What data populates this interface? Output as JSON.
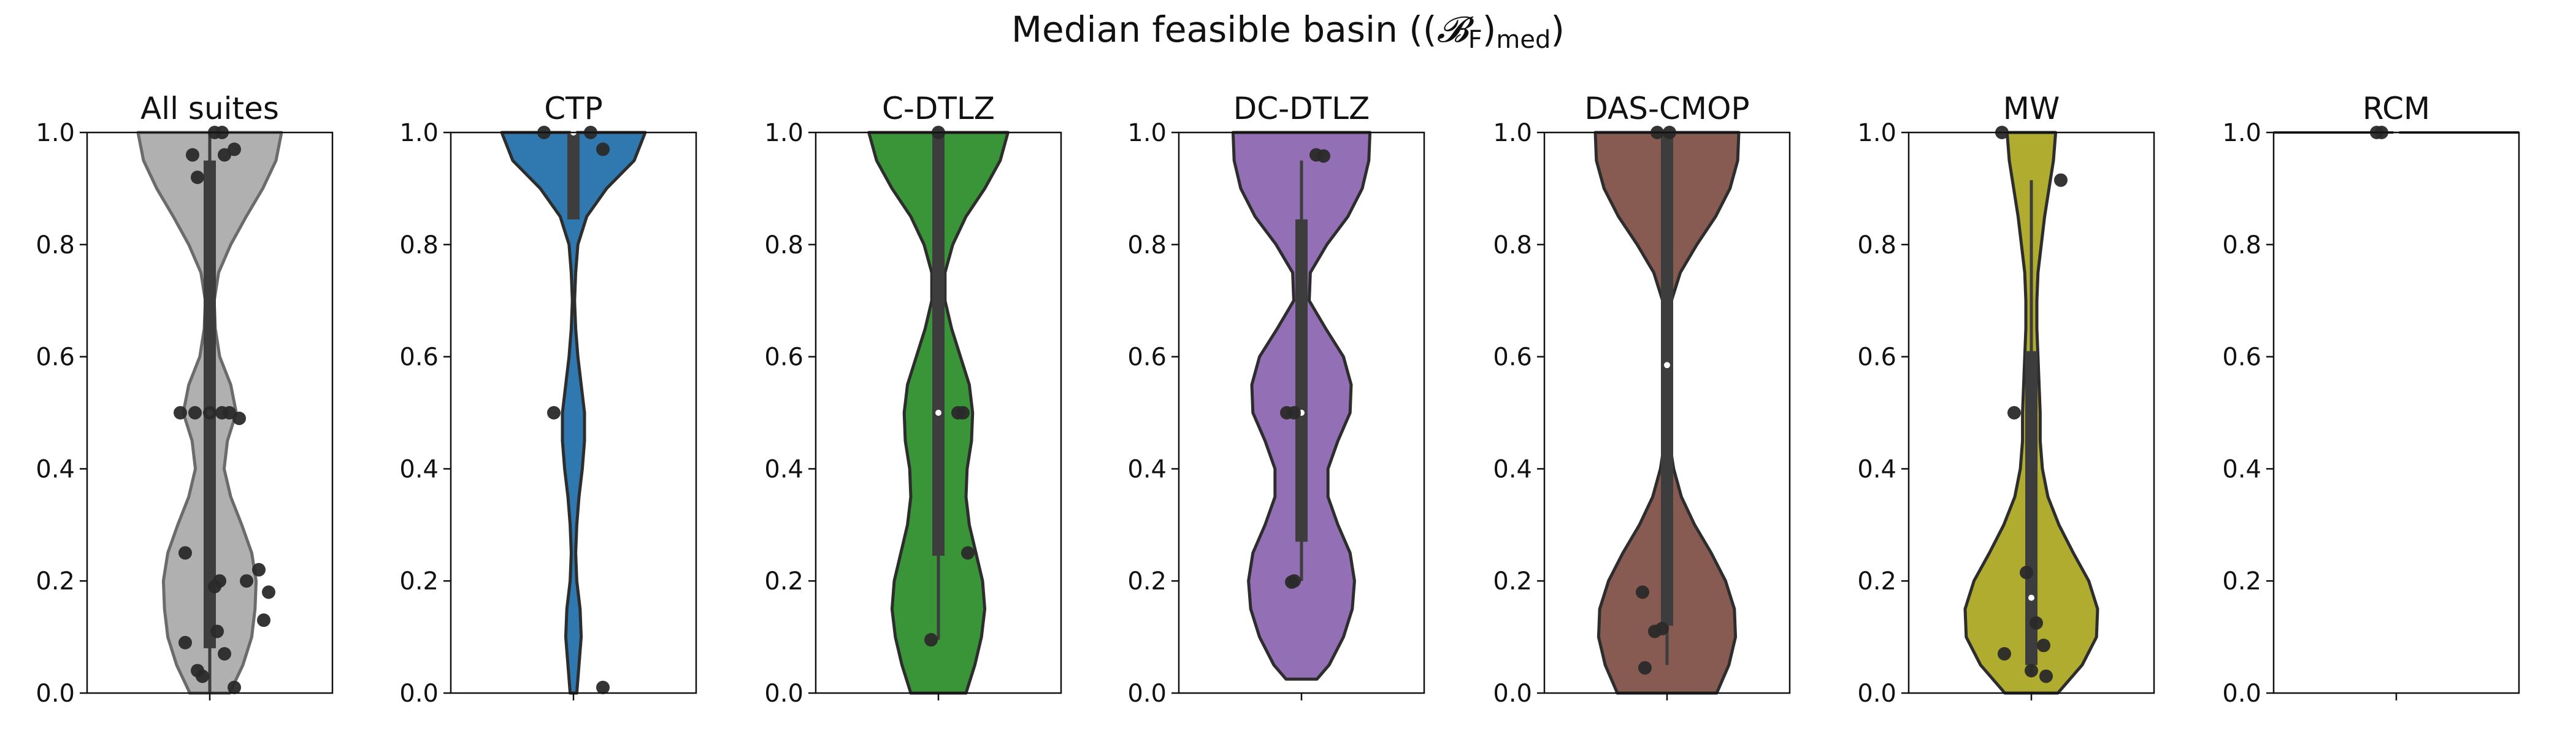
{
  "title": {
    "prefix": "Median feasible basin ((",
    "symbol": "𝓑",
    "sub_f": "F",
    "mid": ")",
    "sub_med": "med",
    "suffix": ")"
  },
  "chart_data": {
    "type": "violin",
    "ylim": [
      0,
      1
    ],
    "yticks": [
      "0.0",
      "0.2",
      "0.4",
      "0.6",
      "0.8",
      "1.0"
    ],
    "grid": false,
    "panels": [
      {
        "title": "All suites",
        "color": "#b0b0b0",
        "outline": "#6b6b6b",
        "violin": [
          [
            0.0,
            0.18
          ],
          [
            0.05,
            0.3
          ],
          [
            0.1,
            0.38
          ],
          [
            0.15,
            0.41
          ],
          [
            0.2,
            0.42
          ],
          [
            0.25,
            0.38
          ],
          [
            0.3,
            0.29
          ],
          [
            0.35,
            0.19
          ],
          [
            0.4,
            0.13
          ],
          [
            0.45,
            0.16
          ],
          [
            0.5,
            0.24
          ],
          [
            0.55,
            0.19
          ],
          [
            0.6,
            0.09
          ],
          [
            0.65,
            0.05
          ],
          [
            0.7,
            0.04
          ],
          [
            0.75,
            0.08
          ],
          [
            0.8,
            0.19
          ],
          [
            0.85,
            0.33
          ],
          [
            0.9,
            0.48
          ],
          [
            0.95,
            0.6
          ],
          [
            1.0,
            0.65
          ]
        ],
        "box": {
          "q1": 0.08,
          "median": 0.5,
          "q3": 0.95,
          "whisker_low": 0.0,
          "whisker_high": 1.0
        },
        "points": [
          [
            0.0,
            0.5
          ],
          [
            -0.07,
            0.96
          ],
          [
            0.06,
            0.96
          ],
          [
            0.1,
            0.97
          ],
          [
            -0.05,
            0.92
          ],
          [
            0.02,
            1.0
          ],
          [
            0.05,
            1.0
          ],
          [
            -0.12,
            0.5
          ],
          [
            -0.06,
            0.5
          ],
          [
            0.05,
            0.5
          ],
          [
            0.08,
            0.5
          ],
          [
            0.12,
            0.49
          ],
          [
            -0.1,
            0.25
          ],
          [
            0.2,
            0.22
          ],
          [
            0.15,
            0.2
          ],
          [
            0.04,
            0.2
          ],
          [
            0.02,
            0.19
          ],
          [
            0.24,
            0.18
          ],
          [
            0.22,
            0.13
          ],
          [
            0.03,
            0.11
          ],
          [
            -0.1,
            0.09
          ],
          [
            0.06,
            0.07
          ],
          [
            -0.05,
            0.04
          ],
          [
            -0.03,
            0.03
          ],
          [
            0.1,
            0.01
          ]
        ]
      },
      {
        "title": "CTP",
        "color": "#2f78b0",
        "outline": "#2d2d2d",
        "violin": [
          [
            0.0,
            0.03
          ],
          [
            0.05,
            0.05
          ],
          [
            0.1,
            0.07
          ],
          [
            0.15,
            0.06
          ],
          [
            0.2,
            0.03
          ],
          [
            0.25,
            0.02
          ],
          [
            0.3,
            0.03
          ],
          [
            0.35,
            0.05
          ],
          [
            0.4,
            0.08
          ],
          [
            0.45,
            0.1
          ],
          [
            0.5,
            0.1
          ],
          [
            0.55,
            0.07
          ],
          [
            0.6,
            0.04
          ],
          [
            0.65,
            0.02
          ],
          [
            0.7,
            0.01
          ],
          [
            0.75,
            0.02
          ],
          [
            0.8,
            0.04
          ],
          [
            0.85,
            0.12
          ],
          [
            0.9,
            0.3
          ],
          [
            0.95,
            0.55
          ],
          [
            1.0,
            0.65
          ]
        ],
        "box": {
          "q1": 0.845,
          "median": 1.0,
          "q3": 1.0,
          "whisker_low": 0.845,
          "whisker_high": 1.0
        },
        "points": [
          [
            -0.12,
            1.0
          ],
          [
            0.07,
            1.0
          ],
          [
            0.12,
            0.97
          ],
          [
            -0.08,
            0.5
          ],
          [
            0.12,
            0.01
          ]
        ]
      },
      {
        "title": "C-DTLZ",
        "color": "#3a9438",
        "outline": "#2d2d2d",
        "violin": [
          [
            0.0,
            0.25
          ],
          [
            0.05,
            0.33
          ],
          [
            0.1,
            0.39
          ],
          [
            0.15,
            0.42
          ],
          [
            0.2,
            0.4
          ],
          [
            0.25,
            0.34
          ],
          [
            0.3,
            0.28
          ],
          [
            0.35,
            0.25
          ],
          [
            0.4,
            0.26
          ],
          [
            0.45,
            0.3
          ],
          [
            0.5,
            0.31
          ],
          [
            0.55,
            0.28
          ],
          [
            0.6,
            0.2
          ],
          [
            0.65,
            0.12
          ],
          [
            0.7,
            0.06
          ],
          [
            0.75,
            0.06
          ],
          [
            0.8,
            0.13
          ],
          [
            0.85,
            0.25
          ],
          [
            0.9,
            0.42
          ],
          [
            0.95,
            0.56
          ],
          [
            1.0,
            0.63
          ]
        ],
        "box": {
          "q1": 0.245,
          "median": 0.5,
          "q3": 1.0,
          "whisker_low": 0.095,
          "whisker_high": 1.0
        },
        "points": [
          [
            0.08,
            0.5
          ],
          [
            0.1,
            0.5
          ],
          [
            -0.03,
            0.095
          ],
          [
            0.12,
            0.25
          ],
          [
            0.0,
            1.0
          ]
        ]
      },
      {
        "title": "DC-DTLZ",
        "color": "#9370b5",
        "outline": "#2d2d2d",
        "violin": [
          [
            0.025,
            0.14
          ],
          [
            0.05,
            0.25
          ],
          [
            0.1,
            0.38
          ],
          [
            0.15,
            0.46
          ],
          [
            0.2,
            0.48
          ],
          [
            0.25,
            0.44
          ],
          [
            0.3,
            0.33
          ],
          [
            0.35,
            0.24
          ],
          [
            0.4,
            0.24
          ],
          [
            0.45,
            0.33
          ],
          [
            0.5,
            0.44
          ],
          [
            0.55,
            0.45
          ],
          [
            0.6,
            0.38
          ],
          [
            0.65,
            0.22
          ],
          [
            0.7,
            0.07
          ],
          [
            0.75,
            0.08
          ],
          [
            0.8,
            0.23
          ],
          [
            0.85,
            0.42
          ],
          [
            0.9,
            0.55
          ],
          [
            0.95,
            0.61
          ],
          [
            1.0,
            0.62
          ]
        ],
        "box": {
          "q1": 0.27,
          "median": 0.5,
          "q3": 0.845,
          "whisker_low": 0.2,
          "whisker_high": 0.95
        },
        "points": [
          [
            -0.06,
            0.5
          ],
          [
            -0.03,
            0.5
          ],
          [
            -0.03,
            0.2
          ],
          [
            -0.04,
            0.198
          ],
          [
            0.06,
            0.96
          ],
          [
            0.09,
            0.958
          ]
        ]
      },
      {
        "title": "DAS-CMOP",
        "color": "#875b52",
        "outline": "#2d2d2d",
        "violin": [
          [
            0.0,
            0.45
          ],
          [
            0.05,
            0.56
          ],
          [
            0.1,
            0.62
          ],
          [
            0.15,
            0.61
          ],
          [
            0.2,
            0.53
          ],
          [
            0.25,
            0.4
          ],
          [
            0.3,
            0.25
          ],
          [
            0.35,
            0.13
          ],
          [
            0.4,
            0.06
          ],
          [
            0.45,
            0.02
          ],
          [
            0.5,
            0.01
          ],
          [
            0.55,
            0.005
          ],
          [
            0.6,
            0.005
          ],
          [
            0.65,
            0.01
          ],
          [
            0.7,
            0.04
          ],
          [
            0.75,
            0.12
          ],
          [
            0.8,
            0.27
          ],
          [
            0.85,
            0.44
          ],
          [
            0.9,
            0.57
          ],
          [
            0.95,
            0.64
          ],
          [
            1.0,
            0.65
          ]
        ],
        "box": {
          "q1": 0.12,
          "median": 0.585,
          "q3": 1.0,
          "whisker_low": 0.05,
          "whisker_high": 1.0
        },
        "points": [
          [
            -0.1,
            0.18
          ],
          [
            -0.05,
            0.11
          ],
          [
            -0.02,
            0.115
          ],
          [
            -0.09,
            0.045
          ],
          [
            0.01,
            1.0
          ],
          [
            -0.04,
            1.0
          ]
        ]
      },
      {
        "title": "MW",
        "color": "#afac30",
        "outline": "#2d2d2d",
        "violin": [
          [
            0.0,
            0.24
          ],
          [
            0.05,
            0.46
          ],
          [
            0.1,
            0.59
          ],
          [
            0.15,
            0.6
          ],
          [
            0.2,
            0.52
          ],
          [
            0.25,
            0.38
          ],
          [
            0.3,
            0.25
          ],
          [
            0.35,
            0.15
          ],
          [
            0.4,
            0.1
          ],
          [
            0.45,
            0.08
          ],
          [
            0.5,
            0.08
          ],
          [
            0.55,
            0.07
          ],
          [
            0.6,
            0.06
          ],
          [
            0.65,
            0.05
          ],
          [
            0.7,
            0.05
          ],
          [
            0.75,
            0.06
          ],
          [
            0.8,
            0.09
          ],
          [
            0.85,
            0.12
          ],
          [
            0.9,
            0.16
          ],
          [
            0.95,
            0.2
          ],
          [
            1.0,
            0.22
          ]
        ],
        "box": {
          "q1": 0.05,
          "median": 0.17,
          "q3": 0.61,
          "whisker_low": 0.03,
          "whisker_high": 0.915
        },
        "points": [
          [
            -0.07,
            0.5
          ],
          [
            -0.02,
            0.215
          ],
          [
            0.02,
            0.125
          ],
          [
            0.05,
            0.085
          ],
          [
            0.0,
            0.04
          ],
          [
            0.06,
            0.03
          ],
          [
            -0.11,
            0.07
          ],
          [
            0.12,
            0.915
          ],
          [
            -0.12,
            1.0
          ]
        ]
      },
      {
        "title": "RCM",
        "color": "#41b6c4",
        "outline": "#2d2d2d",
        "violin": [],
        "box": {
          "q1": 1.0,
          "median": 1.0,
          "q3": 1.0,
          "whisker_low": 1.0,
          "whisker_high": 1.0
        },
        "flat_line_at": 1.0,
        "points": [
          [
            -0.08,
            1.0
          ],
          [
            -0.06,
            1.0
          ]
        ]
      }
    ]
  }
}
